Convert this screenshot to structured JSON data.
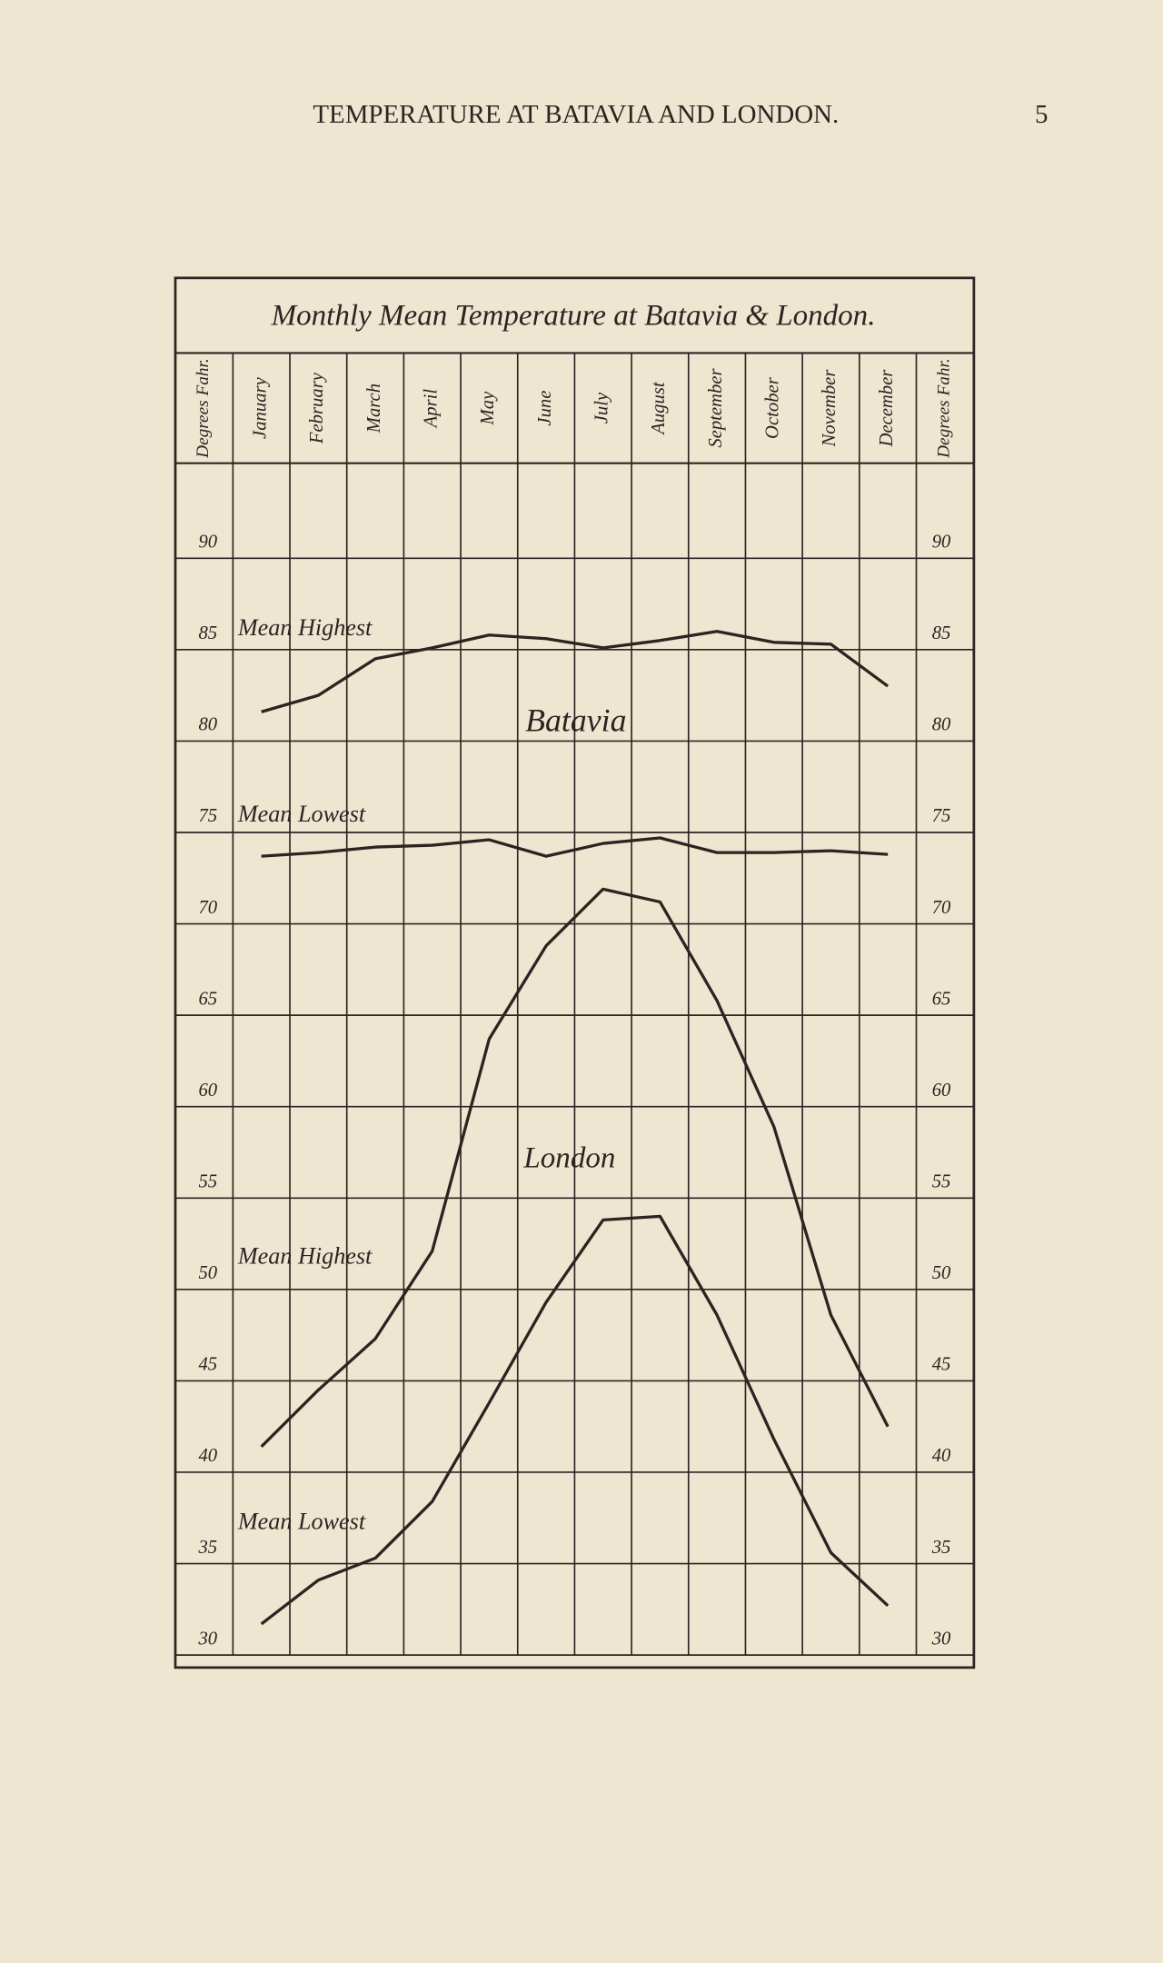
{
  "page": {
    "header": "TEMPERATURE AT BATAVIA AND LONDON.",
    "number": "5"
  },
  "chart_data": {
    "type": "line",
    "title": "Monthly Mean Temperature at Batavia & London.",
    "y_label": "Degrees Fahr.",
    "categories": [
      "January",
      "February",
      "March",
      "April",
      "May",
      "June",
      "July",
      "August",
      "September",
      "October",
      "November",
      "December"
    ],
    "groups": [
      "Batavia",
      "London"
    ],
    "series": [
      {
        "name": "Mean Highest",
        "color": "#2a2520",
        "values": [
          81.6,
          82.5,
          84.5,
          85.1,
          85.8,
          85.6,
          85.1,
          85.5,
          86.0,
          85.4,
          85.3,
          83.0
        ]
      },
      {
        "name": "Mean Lowest",
        "color": "#2a2520",
        "values": [
          73.7,
          73.9,
          74.2,
          74.3,
          74.6,
          73.7,
          74.4,
          74.7,
          73.9,
          73.9,
          74.0,
          73.8
        ]
      },
      {
        "name": "Mean Highest",
        "color": "#2a2520",
        "values": [
          41.4,
          44.5,
          47.3,
          52.1,
          63.7,
          68.8,
          71.9,
          71.2,
          65.8,
          58.9,
          48.6,
          42.5
        ]
      },
      {
        "name": "Mean Lowest",
        "color": "#2a2520",
        "values": [
          31.7,
          34.1,
          35.3,
          38.4,
          43.8,
          49.3,
          53.8,
          54.0,
          48.6,
          41.8,
          35.6,
          32.7
        ]
      }
    ],
    "ylim": [
      30,
      95.2
    ],
    "yticks": [
      30,
      35,
      40,
      45,
      50,
      55,
      60,
      65,
      70,
      75,
      80,
      85,
      90
    ],
    "grid": true
  }
}
